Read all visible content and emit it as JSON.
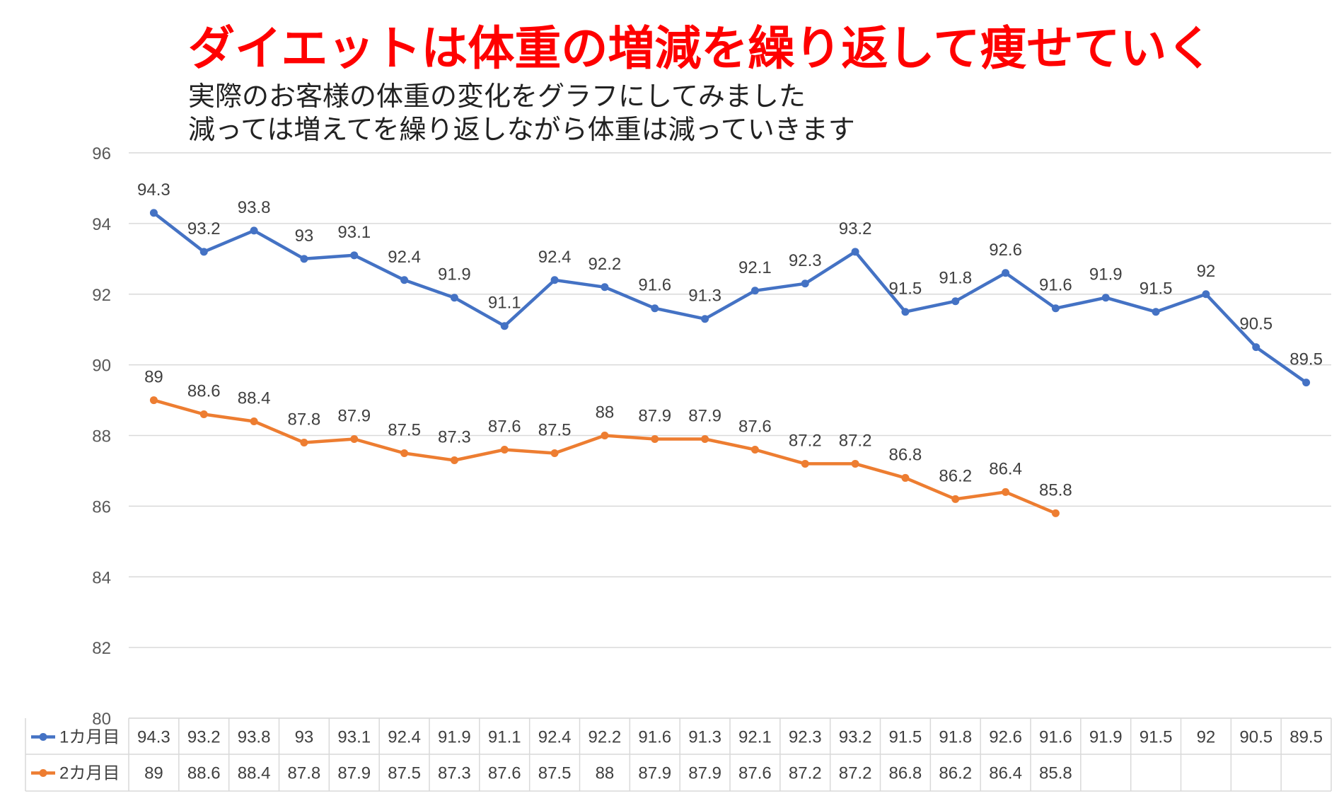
{
  "page": {
    "title": "ダイエットは体重の増減を繰り返して痩せていく",
    "subtitle_line1": "実際のお客様の体重の変化をグラフにしてみました",
    "subtitle_line2": "減っては増えてを繰り返しながら体重は減っていきます"
  },
  "chart_data": {
    "type": "line",
    "title": "ダイエットは体重の増減を繰り返して痩せていく",
    "xlabel": "",
    "ylabel": "",
    "ylim": [
      80,
      96
    ],
    "yticks": [
      80,
      82,
      84,
      86,
      88,
      90,
      92,
      94,
      96
    ],
    "grid": "horizontal",
    "data_labels": true,
    "legend": "data-table-below",
    "series": [
      {
        "name": "1カ月目",
        "color": "#4472c4",
        "values": [
          94.3,
          93.2,
          93.8,
          93,
          93.1,
          92.4,
          91.9,
          91.1,
          92.4,
          92.2,
          91.6,
          91.3,
          92.1,
          92.3,
          93.2,
          91.5,
          91.8,
          92.6,
          91.6,
          91.9,
          91.5,
          92,
          90.5,
          89.5
        ]
      },
      {
        "name": "2カ月目",
        "color": "#ed7d31",
        "values": [
          89,
          88.6,
          88.4,
          87.8,
          87.9,
          87.5,
          87.3,
          87.6,
          87.5,
          88,
          87.9,
          87.9,
          87.6,
          87.2,
          87.2,
          86.8,
          86.2,
          86.4,
          85.8
        ]
      }
    ]
  }
}
